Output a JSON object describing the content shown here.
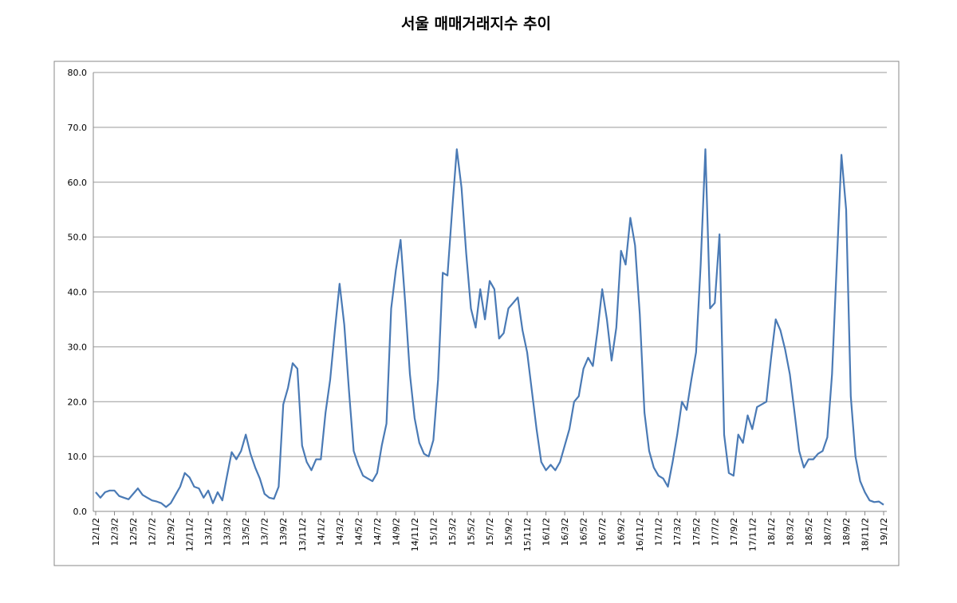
{
  "chart_data": {
    "type": "line",
    "title": "서울 매매거래지수 추이",
    "categories": [
      "12/1/2",
      null,
      null,
      null,
      "12/3/2",
      null,
      null,
      null,
      "12/5/2",
      null,
      null,
      null,
      "12/7/2",
      null,
      null,
      null,
      "12/9/2",
      null,
      null,
      null,
      "12/11/2",
      null,
      null,
      null,
      "13/1/2",
      null,
      null,
      null,
      "13/3/2",
      null,
      null,
      null,
      "13/5/2",
      null,
      null,
      null,
      "13/7/2",
      null,
      null,
      null,
      "13/9/2",
      null,
      null,
      null,
      "13/11/2",
      null,
      null,
      null,
      "14/1/2",
      null,
      null,
      null,
      "14/3/2",
      null,
      null,
      null,
      "14/5/2",
      null,
      null,
      null,
      "14/7/2",
      null,
      null,
      null,
      "14/9/2",
      null,
      null,
      null,
      "14/11/2",
      null,
      null,
      null,
      "15/1/2",
      null,
      null,
      null,
      "15/3/2",
      null,
      null,
      null,
      "15/5/2",
      null,
      null,
      null,
      "15/7/2",
      null,
      null,
      null,
      "15/9/2",
      null,
      null,
      null,
      "15/11/2",
      null,
      null,
      null,
      "16/1/2",
      null,
      null,
      null,
      "16/3/2",
      null,
      null,
      null,
      "16/5/2",
      null,
      null,
      null,
      "16/7/2",
      null,
      null,
      null,
      "16/9/2",
      null,
      null,
      null,
      "16/11/2",
      null,
      null,
      null,
      "17/1/2",
      null,
      null,
      null,
      "17/3/2",
      null,
      null,
      null,
      "17/5/2",
      null,
      null,
      null,
      "17/7/2",
      null,
      null,
      null,
      "17/9/2",
      null,
      null,
      null,
      "17/11/2",
      null,
      null,
      null,
      "18/1/2",
      null,
      null,
      null,
      "18/3/2",
      null,
      null,
      null,
      "18/5/2",
      null,
      null,
      null,
      "18/7/2",
      null,
      null,
      null,
      "18/9/2",
      null,
      null,
      null,
      "18/11/2",
      null,
      null,
      null,
      "19/1/2"
    ],
    "series": [
      {
        "name": "서울",
        "color": "#4a7ab5",
        "values": [
          3.5,
          2.5,
          3.5,
          3.8,
          3.8,
          2.8,
          2.5,
          2.2,
          3.2,
          4.2,
          3.0,
          2.5,
          2.0,
          1.8,
          1.5,
          0.8,
          1.5,
          3.0,
          4.5,
          7.0,
          6.2,
          4.5,
          4.2,
          2.5,
          3.8,
          1.5,
          3.5,
          2.0,
          6.5,
          10.8,
          9.5,
          11.0,
          14.0,
          10.5,
          8.0,
          6.0,
          3.2,
          2.5,
          2.3,
          4.5,
          19.5,
          22.5,
          27.0,
          26.0,
          12.0,
          9.0,
          7.5,
          9.5,
          9.5,
          18.0,
          24.0,
          33.0,
          41.5,
          34.0,
          22.0,
          11.0,
          8.5,
          6.5,
          6.0,
          5.5,
          7.0,
          12.0,
          16.0,
          37.0,
          44.0,
          49.5,
          38.0,
          25.0,
          17.0,
          12.5,
          10.5,
          10.0,
          13.0,
          24.0,
          43.5,
          43.0,
          55.0,
          66.0,
          59.0,
          47.0,
          37.0,
          33.5,
          40.5,
          35.0,
          42.0,
          40.5,
          31.5,
          32.5,
          37.0,
          38.0,
          39.0,
          33.0,
          29.0,
          22.0,
          15.0,
          9.0,
          7.5,
          8.5,
          7.5,
          9.0,
          12.0,
          15.0,
          20.0,
          21.0,
          26.0,
          28.0,
          26.5,
          33.0,
          40.5,
          35.0,
          27.5,
          33.5,
          47.5,
          45.0,
          53.5,
          48.5,
          36.0,
          18.0,
          11.0,
          8.0,
          6.5,
          6.0,
          4.5,
          9.0,
          14.0,
          20.0,
          18.5,
          24.0,
          29.0,
          45.0,
          66.0,
          37.0,
          38.0,
          50.5,
          14.0,
          7.0,
          6.5,
          14.0,
          12.5,
          17.5,
          15.0,
          19.0,
          19.5,
          20.0,
          28.0,
          35.0,
          33.0,
          29.5,
          25.0,
          18.0,
          11.0,
          8.0,
          9.5,
          9.5,
          10.5,
          11.0,
          13.5,
          25.0,
          45.0,
          65.0,
          55.0,
          21.0,
          10.0,
          5.5,
          3.5,
          2.0,
          1.7,
          1.8,
          1.2
        ]
      }
    ],
    "ylim": [
      0,
      80
    ],
    "yticks": [
      {
        "value": 0,
        "label": "0.0"
      },
      {
        "value": 10,
        "label": "10.0"
      },
      {
        "value": 20,
        "label": "20.0"
      },
      {
        "value": 30,
        "label": "30.0"
      },
      {
        "value": 40,
        "label": "40.0"
      },
      {
        "value": 50,
        "label": "50.0"
      },
      {
        "value": 60,
        "label": "60.0"
      },
      {
        "value": 70,
        "label": "70.0"
      },
      {
        "value": 80,
        "label": "80.0"
      }
    ],
    "grid": true
  }
}
